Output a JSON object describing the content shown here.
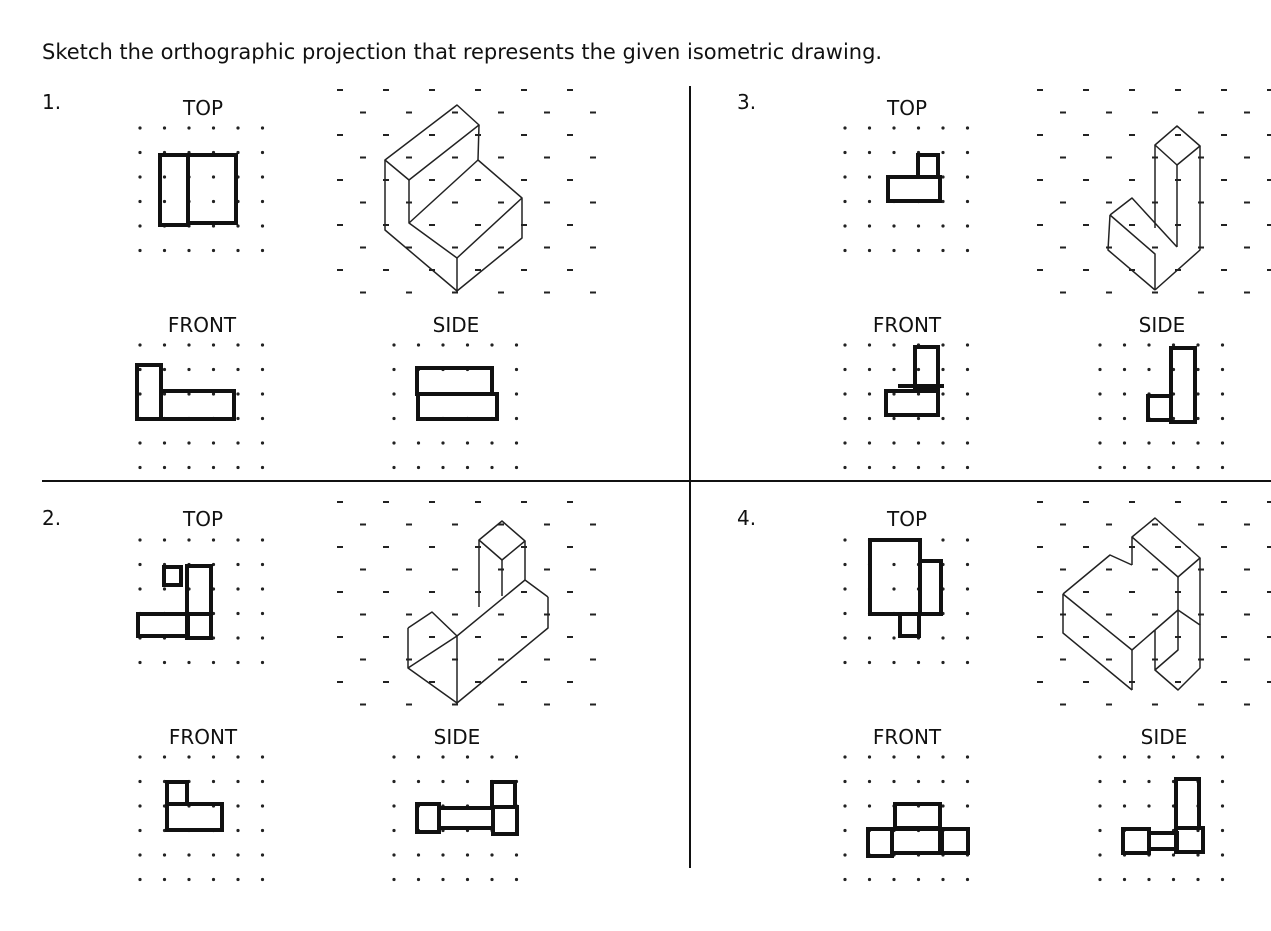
{
  "instructions": "Sketch the orthographic projection that represents the given isometric drawing.",
  "problems": [
    {
      "number": "1.",
      "top": "TOP",
      "front": "FRONT",
      "side": "SIDE"
    },
    {
      "number": "2.",
      "top": "TOP",
      "front": "FRONT",
      "side": "SIDE"
    },
    {
      "number": "3.",
      "top": "TOP",
      "front": "FRONT",
      "side": "SIDE"
    },
    {
      "number": "4.",
      "top": "TOP",
      "front": "FRONT",
      "side": "SIDE"
    }
  ]
}
